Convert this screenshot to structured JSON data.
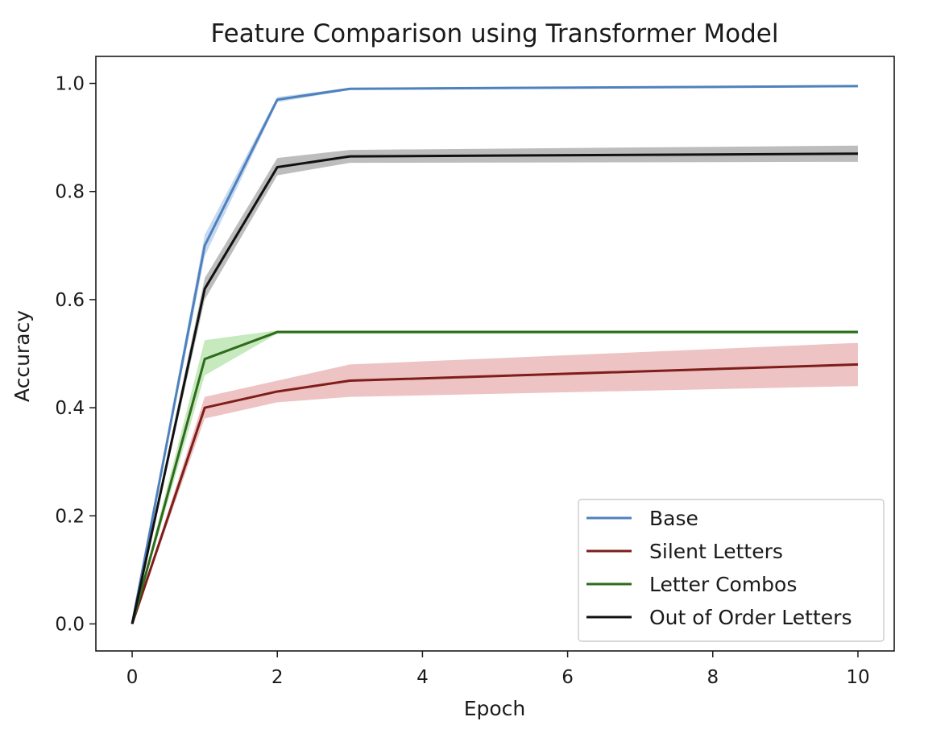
{
  "chart_data": {
    "type": "line",
    "title": "Feature Comparison using Transformer Model",
    "xlabel": "Epoch",
    "ylabel": "Accuracy",
    "xlim": [
      -0.5,
      10.5
    ],
    "ylim": [
      -0.05,
      1.05
    ],
    "xticks": [
      0,
      2,
      4,
      6,
      8,
      10
    ],
    "xtick_labels": [
      "0",
      "2",
      "4",
      "6",
      "8",
      "10"
    ],
    "yticks": [
      0.0,
      0.2,
      0.4,
      0.6,
      0.8,
      1.0
    ],
    "ytick_labels": [
      "0.0",
      "0.2",
      "0.4",
      "0.6",
      "0.8",
      "1.0"
    ],
    "grid": false,
    "legend_position": "lower-right",
    "x": [
      0,
      1,
      2,
      3,
      10
    ],
    "series": [
      {
        "name": "Base",
        "color": "#4f81bd",
        "band_color": "#a9c6e8",
        "values": [
          0.0,
          0.7,
          0.97,
          0.99,
          0.995
        ],
        "lower": [
          0.0,
          0.68,
          0.965,
          0.988,
          0.993
        ],
        "upper": [
          0.0,
          0.72,
          0.975,
          0.992,
          0.997
        ]
      },
      {
        "name": "Silent Letters",
        "color": "#7f1d1a",
        "band_color": "#e3a3a3",
        "values": [
          0.0,
          0.4,
          0.43,
          0.45,
          0.48
        ],
        "lower": [
          0.0,
          0.38,
          0.41,
          0.42,
          0.44
        ],
        "upper": [
          0.0,
          0.42,
          0.45,
          0.48,
          0.52
        ]
      },
      {
        "name": "Letter Combos",
        "color": "#2e6b1c",
        "band_color": "#a8dd9b",
        "values": [
          0.0,
          0.49,
          0.54,
          0.54,
          0.54
        ],
        "lower": [
          0.0,
          0.46,
          0.537,
          0.537,
          0.537
        ],
        "upper": [
          0.0,
          0.525,
          0.543,
          0.543,
          0.543
        ]
      },
      {
        "name": "Out of Order Letters",
        "color": "#111111",
        "band_color": "#9a9a9a",
        "values": [
          0.0,
          0.62,
          0.845,
          0.865,
          0.87
        ],
        "lower": [
          0.0,
          0.6,
          0.83,
          0.853,
          0.855
        ],
        "upper": [
          0.0,
          0.64,
          0.862,
          0.877,
          0.885
        ]
      }
    ]
  }
}
